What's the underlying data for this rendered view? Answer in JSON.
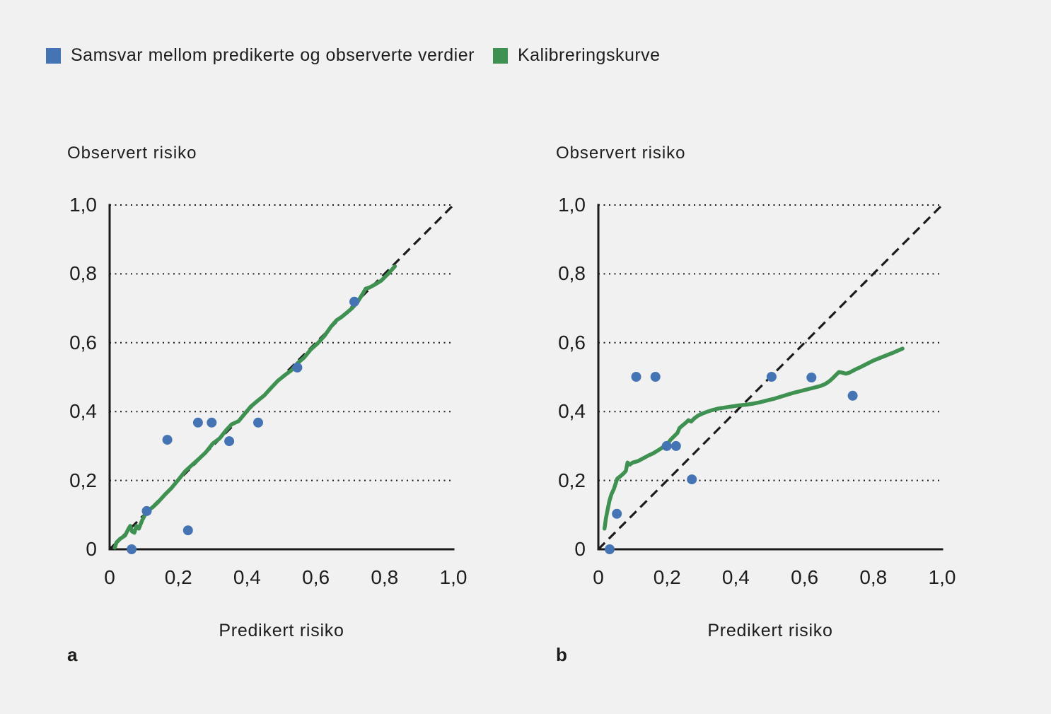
{
  "colors": {
    "background": "#f2f1f1",
    "text": "#1d1d1b",
    "axis": "#1b1b1b",
    "blue": "#4574b4",
    "green": "#3f9152"
  },
  "legend": [
    {
      "label": "Samsvar mellom predikerte og observerte verdier",
      "color": "#4574b4",
      "swatch": "blue-square"
    },
    {
      "label": "Kalibreringskurve",
      "color": "#3f9152",
      "swatch": "green-square"
    }
  ],
  "chart_data": [
    {
      "type": "scatter",
      "panel_label": "a",
      "title": "Observert risiko",
      "xlabel": "Predikert risiko",
      "xlim": [
        0,
        1
      ],
      "ylim": [
        0,
        1
      ],
      "xtick_values": [
        0,
        0.2,
        0.4,
        0.6,
        0.8,
        1.0
      ],
      "xtick_labels": [
        "0",
        "0,2",
        "0,4",
        "0,6",
        "0,8",
        "1,0"
      ],
      "ytick_values": [
        0,
        0.2,
        0.4,
        0.6,
        0.8,
        1.0
      ],
      "ytick_labels": [
        "0",
        "0,2",
        "0,4",
        "0,6",
        "0,8",
        "1,0"
      ],
      "gridlines_y": [
        0.2,
        0.4,
        0.6,
        0.8,
        1.0
      ],
      "grid": "dotted-horizontal",
      "identity_line": true,
      "legend_position": "top-of-figure",
      "series": [
        {
          "name": "Kalibreringskurve",
          "kind": "line",
          "color": "#3f9152",
          "points": [
            [
              0.015,
              0.005
            ],
            [
              0.02,
              0.02
            ],
            [
              0.03,
              0.03
            ],
            [
              0.045,
              0.04
            ],
            [
              0.055,
              0.06
            ],
            [
              0.06,
              0.068
            ],
            [
              0.065,
              0.052
            ],
            [
              0.072,
              0.048
            ],
            [
              0.078,
              0.068
            ],
            [
              0.085,
              0.06
            ],
            [
              0.095,
              0.085
            ],
            [
              0.108,
              0.11
            ],
            [
              0.125,
              0.122
            ],
            [
              0.14,
              0.136
            ],
            [
              0.16,
              0.158
            ],
            [
              0.18,
              0.178
            ],
            [
              0.2,
              0.202
            ],
            [
              0.22,
              0.227
            ],
            [
              0.24,
              0.245
            ],
            [
              0.26,
              0.263
            ],
            [
              0.28,
              0.282
            ],
            [
              0.3,
              0.307
            ],
            [
              0.32,
              0.322
            ],
            [
              0.34,
              0.347
            ],
            [
              0.355,
              0.363
            ],
            [
              0.375,
              0.372
            ],
            [
              0.39,
              0.39
            ],
            [
              0.41,
              0.414
            ],
            [
              0.43,
              0.431
            ],
            [
              0.45,
              0.447
            ],
            [
              0.47,
              0.469
            ],
            [
              0.49,
              0.49
            ],
            [
              0.51,
              0.506
            ],
            [
              0.53,
              0.521
            ],
            [
              0.546,
              0.54
            ],
            [
              0.565,
              0.556
            ],
            [
              0.585,
              0.58
            ],
            [
              0.605,
              0.598
            ],
            [
              0.625,
              0.62
            ],
            [
              0.645,
              0.648
            ],
            [
              0.66,
              0.665
            ],
            [
              0.675,
              0.675
            ],
            [
              0.69,
              0.687
            ],
            [
              0.705,
              0.7
            ],
            [
              0.72,
              0.716
            ],
            [
              0.735,
              0.74
            ],
            [
              0.745,
              0.757
            ],
            [
              0.755,
              0.76
            ],
            [
              0.77,
              0.768
            ],
            [
              0.79,
              0.78
            ],
            [
              0.81,
              0.8
            ],
            [
              0.83,
              0.822
            ]
          ]
        },
        {
          "name": "Samsvar mellom predikerte og observerte verdier",
          "kind": "scatter",
          "color": "#4574b4",
          "points": [
            [
              0.064,
              0.0
            ],
            [
              0.108,
              0.111
            ],
            [
              0.168,
              0.318
            ],
            [
              0.228,
              0.055
            ],
            [
              0.257,
              0.368
            ],
            [
              0.297,
              0.368
            ],
            [
              0.348,
              0.314
            ],
            [
              0.432,
              0.368
            ],
            [
              0.546,
              0.528
            ],
            [
              0.712,
              0.719
            ]
          ]
        }
      ]
    },
    {
      "type": "scatter",
      "panel_label": "b",
      "title": "Observert risiko",
      "xlabel": "Predikert risiko",
      "xlim": [
        0,
        1
      ],
      "ylim": [
        0,
        1
      ],
      "xtick_values": [
        0,
        0.2,
        0.4,
        0.6,
        0.8,
        1.0
      ],
      "xtick_labels": [
        "0",
        "0,2",
        "0,4",
        "0,6",
        "0,8",
        "1,0"
      ],
      "ytick_values": [
        0,
        0.2,
        0.4,
        0.6,
        0.8,
        1.0
      ],
      "ytick_labels": [
        "0",
        "0,2",
        "0,4",
        "0,6",
        "0,8",
        "1,0"
      ],
      "gridlines_y": [
        0.2,
        0.4,
        0.6,
        0.8,
        1.0
      ],
      "grid": "dotted-horizontal",
      "identity_line": true,
      "legend_position": "top-of-figure",
      "series": [
        {
          "name": "Kalibreringskurve",
          "kind": "line",
          "color": "#3f9152",
          "points": [
            [
              0.018,
              0.06
            ],
            [
              0.022,
              0.09
            ],
            [
              0.027,
              0.115
            ],
            [
              0.032,
              0.14
            ],
            [
              0.038,
              0.16
            ],
            [
              0.045,
              0.175
            ],
            [
              0.05,
              0.19
            ],
            [
              0.055,
              0.205
            ],
            [
              0.065,
              0.213
            ],
            [
              0.075,
              0.222
            ],
            [
              0.08,
              0.228
            ],
            [
              0.085,
              0.252
            ],
            [
              0.092,
              0.246
            ],
            [
              0.1,
              0.252
            ],
            [
              0.115,
              0.256
            ],
            [
              0.13,
              0.264
            ],
            [
              0.145,
              0.272
            ],
            [
              0.16,
              0.279
            ],
            [
              0.175,
              0.288
            ],
            [
              0.19,
              0.298
            ],
            [
              0.2,
              0.305
            ],
            [
              0.21,
              0.318
            ],
            [
              0.22,
              0.328
            ],
            [
              0.23,
              0.338
            ],
            [
              0.236,
              0.352
            ],
            [
              0.245,
              0.36
            ],
            [
              0.255,
              0.368
            ],
            [
              0.262,
              0.375
            ],
            [
              0.27,
              0.371
            ],
            [
              0.28,
              0.381
            ],
            [
              0.29,
              0.388
            ],
            [
              0.3,
              0.393
            ],
            [
              0.315,
              0.399
            ],
            [
              0.33,
              0.404
            ],
            [
              0.35,
              0.409
            ],
            [
              0.37,
              0.412
            ],
            [
              0.39,
              0.415
            ],
            [
              0.41,
              0.418
            ],
            [
              0.43,
              0.42
            ],
            [
              0.45,
              0.423
            ],
            [
              0.47,
              0.427
            ],
            [
              0.49,
              0.432
            ],
            [
              0.51,
              0.437
            ],
            [
              0.53,
              0.443
            ],
            [
              0.55,
              0.449
            ],
            [
              0.57,
              0.455
            ],
            [
              0.59,
              0.46
            ],
            [
              0.61,
              0.465
            ],
            [
              0.63,
              0.47
            ],
            [
              0.645,
              0.474
            ],
            [
              0.66,
              0.48
            ],
            [
              0.672,
              0.488
            ],
            [
              0.683,
              0.498
            ],
            [
              0.693,
              0.508
            ],
            [
              0.7,
              0.515
            ],
            [
              0.71,
              0.513
            ],
            [
              0.72,
              0.51
            ],
            [
              0.73,
              0.513
            ],
            [
              0.745,
              0.521
            ],
            [
              0.76,
              0.528
            ],
            [
              0.78,
              0.538
            ],
            [
              0.8,
              0.548
            ],
            [
              0.82,
              0.556
            ],
            [
              0.84,
              0.564
            ],
            [
              0.86,
              0.572
            ],
            [
              0.885,
              0.583
            ]
          ]
        },
        {
          "name": "Samsvar mellom predikerte og observerte verdier",
          "kind": "scatter",
          "color": "#4574b4",
          "points": [
            [
              0.033,
              0.0
            ],
            [
              0.054,
              0.103
            ],
            [
              0.11,
              0.501
            ],
            [
              0.166,
              0.501
            ],
            [
              0.199,
              0.3
            ],
            [
              0.226,
              0.3
            ],
            [
              0.272,
              0.203
            ],
            [
              0.504,
              0.501
            ],
            [
              0.62,
              0.499
            ],
            [
              0.74,
              0.446
            ]
          ]
        }
      ]
    }
  ]
}
